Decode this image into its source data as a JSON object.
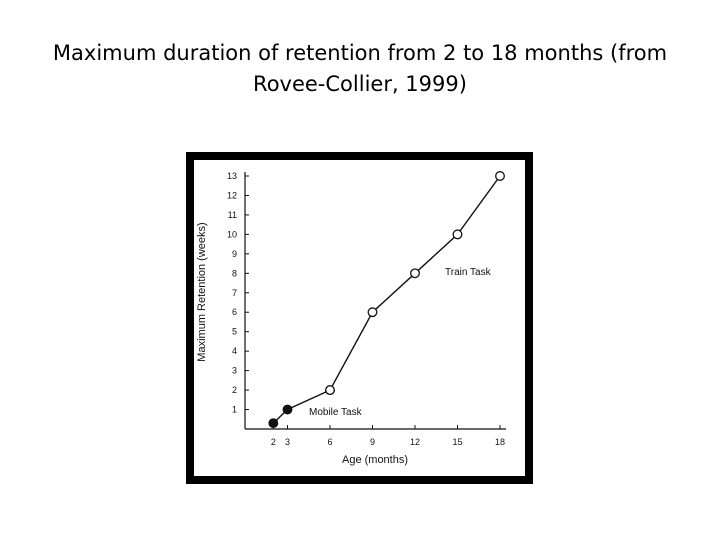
{
  "slide": {
    "title_line1": "Maximum duration of retention from 2 to 18 months (from",
    "title_line2": "Rovee-Collier, 1999)"
  },
  "chart_data": {
    "type": "line",
    "xlabel": "Age (months)",
    "ylabel": "Maximum Retention (weeks)",
    "xlim": [
      0,
      18
    ],
    "ylim": [
      0,
      13
    ],
    "x_ticks": [
      2,
      3,
      6,
      9,
      12,
      15,
      18
    ],
    "y_ticks": [
      1,
      2,
      3,
      4,
      5,
      6,
      7,
      8,
      9,
      10,
      11,
      12,
      13
    ],
    "grid": false,
    "series": [
      {
        "name": "Mobile Task",
        "marker": "filled-circle",
        "x": [
          2,
          3,
          6
        ],
        "y": [
          0.3,
          1,
          2
        ]
      },
      {
        "name": "Train Task",
        "marker": "open-circle",
        "x": [
          6,
          9,
          12,
          15,
          18
        ],
        "y": [
          2,
          6,
          8,
          10,
          13
        ]
      }
    ],
    "colors": {
      "frame": "#000000",
      "plot_bg": "#ffffff",
      "ink": "#111111"
    }
  }
}
